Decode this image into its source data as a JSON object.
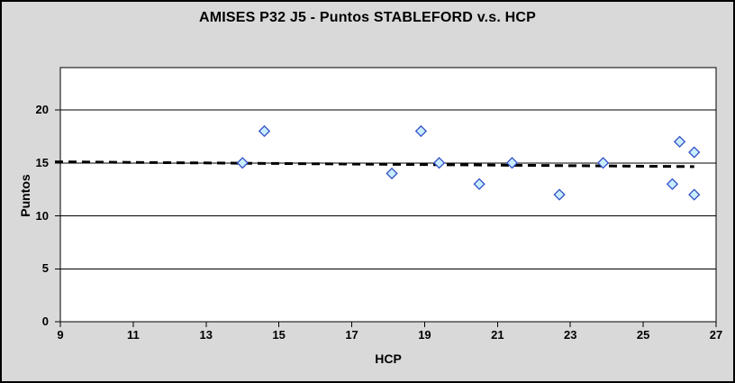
{
  "chart_data": {
    "type": "scatter",
    "title": "AMISES P32 J5 - Puntos STABLEFORD v.s. HCP",
    "xlabel": "HCP",
    "ylabel": "Puntos",
    "xlim": [
      9,
      27
    ],
    "ylim": [
      0,
      24
    ],
    "x_ticks": [
      9,
      11,
      13,
      15,
      17,
      19,
      21,
      23,
      25,
      27
    ],
    "y_ticks": [
      0,
      5,
      10,
      15,
      20
    ],
    "grid": "horizontal-only",
    "legend": "none",
    "series": [
      {
        "name": "Puntos STABLEFORD",
        "marker": "diamond",
        "points": [
          [
            14.0,
            15
          ],
          [
            14.6,
            18
          ],
          [
            18.1,
            14
          ],
          [
            18.9,
            18
          ],
          [
            19.4,
            15
          ],
          [
            20.5,
            13
          ],
          [
            21.4,
            15
          ],
          [
            22.7,
            12
          ],
          [
            23.9,
            15
          ],
          [
            25.8,
            13
          ],
          [
            26.0,
            17
          ],
          [
            26.4,
            16
          ],
          [
            26.4,
            12
          ]
        ]
      }
    ],
    "trendline": {
      "style": "dashed",
      "start": [
        9,
        15.1
      ],
      "end": [
        26.4,
        14.65
      ]
    },
    "colors": {
      "chart_bg": "#d9d9d9",
      "plot_bg": "#ffffff",
      "text": "#000000",
      "marker_fill": "#c9edfb",
      "marker_border": "#3350c8",
      "trendline": "#000000",
      "gridline": "#000000",
      "border": "#000000"
    }
  }
}
